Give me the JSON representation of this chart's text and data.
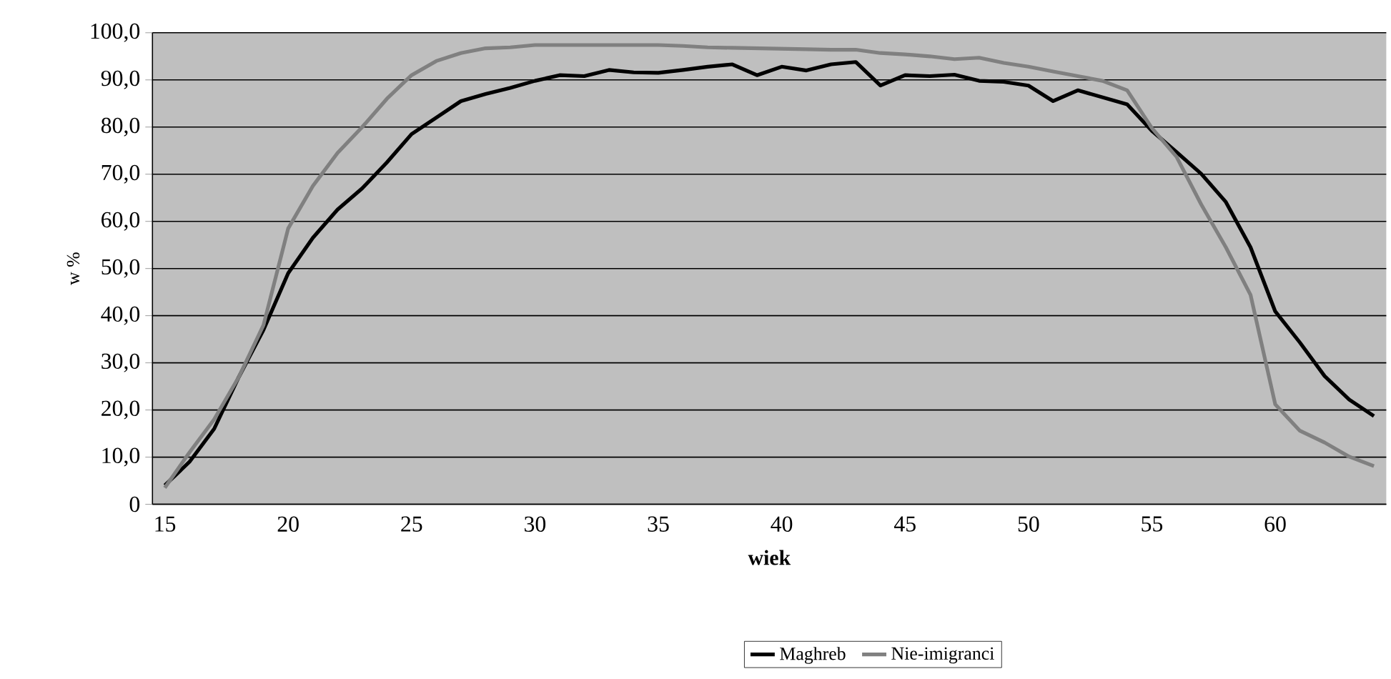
{
  "chart_data": {
    "type": "line",
    "xlabel": "wiek",
    "ylabel": "w %",
    "categories": [
      "15",
      null,
      null,
      null,
      null,
      "20",
      null,
      null,
      null,
      null,
      "25",
      null,
      null,
      null,
      null,
      "30",
      null,
      null,
      null,
      null,
      "35",
      null,
      null,
      null,
      null,
      "40",
      null,
      null,
      null,
      null,
      "45",
      null,
      null,
      null,
      null,
      "50",
      null,
      null,
      null,
      null,
      "55",
      null,
      null,
      null,
      null,
      "60",
      null,
      null,
      null,
      null
    ],
    "series": [
      {
        "name": "Maghreb",
        "color": "#000000",
        "values": [
          4,
          9,
          16,
          27,
          37,
          49,
          56.5,
          62.5,
          67,
          72.5,
          78.5,
          82,
          85.5,
          87,
          88.3,
          89.8,
          91,
          90.8,
          92.1,
          91.6,
          91.5,
          92.1,
          92.8,
          93.3,
          91,
          92.8,
          92,
          93.3,
          93.8,
          88.8,
          91,
          90.8,
          91.1,
          89.8,
          89.6,
          88.8,
          85.5,
          87.8,
          86.3,
          84.8,
          79.2,
          74.7,
          70.1,
          64.1,
          54.5,
          40.9,
          34.3,
          27.2,
          22.2,
          18.7
        ]
      },
      {
        "name": "Nie-imigranci",
        "color": "#808080",
        "values": [
          3.5,
          11,
          18,
          27,
          38,
          58.5,
          67.5,
          74.5,
          80,
          86,
          91,
          94,
          95.7,
          96.7,
          96.9,
          97.4,
          97.4,
          97.4,
          97.4,
          97.4,
          97.4,
          97.2,
          96.9,
          96.8,
          96.7,
          96.6,
          96.5,
          96.4,
          96.4,
          95.7,
          95.4,
          95,
          94.4,
          94.7,
          93.6,
          92.8,
          91.8,
          90.8,
          89.8,
          87.8,
          79.8,
          73.7,
          63.6,
          54.5,
          44.4,
          21.2,
          15.6,
          13.1,
          10.1,
          8.1
        ]
      }
    ],
    "ylim": [
      0,
      100
    ],
    "yticks": [
      0,
      {
        "value": 10,
        "label": "10,0"
      },
      {
        "value": 20,
        "label": "20,0"
      },
      {
        "value": 30,
        "label": "30,0"
      },
      {
        "value": 40,
        "label": "40,0"
      },
      {
        "value": 50,
        "label": "50,0"
      },
      {
        "value": 60,
        "label": "60,0"
      },
      {
        "value": 70,
        "label": "70,0"
      },
      {
        "value": 80,
        "label": "80,0"
      },
      {
        "value": 90,
        "label": "90,0"
      },
      {
        "value": 100,
        "label": "100,0"
      }
    ],
    "grid": "y",
    "legend": "bottom",
    "marker": "none",
    "line_style": "solid"
  }
}
